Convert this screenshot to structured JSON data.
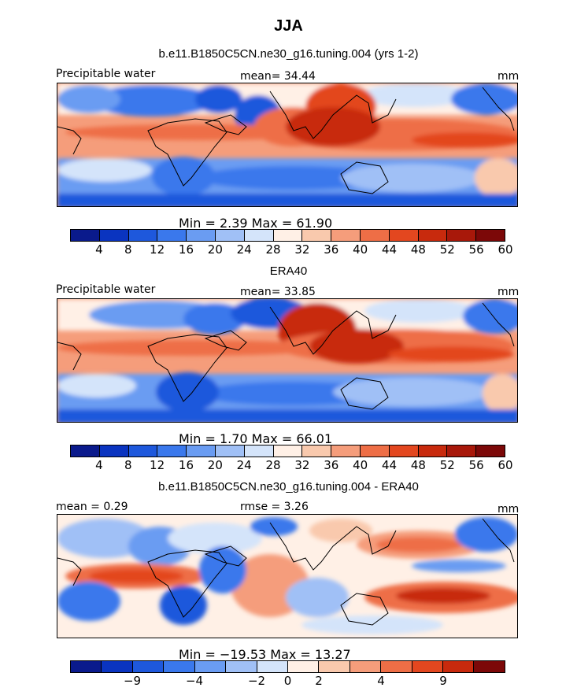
{
  "title": "JJA",
  "colors": {
    "abs_scale": [
      "#0a1a8c",
      "#0a34c0",
      "#1e58dc",
      "#3a78ec",
      "#6a9cf2",
      "#a0c0f6",
      "#d4e4fa",
      "#fff0e6",
      "#f9c9ad",
      "#f59d7b",
      "#ee6e46",
      "#e3471f",
      "#c82a0d",
      "#a8180a",
      "#7c0808"
    ],
    "diff_scale": [
      "#0a1a8c",
      "#0a34c0",
      "#1e58dc",
      "#3a78ec",
      "#6a9cf2",
      "#a0c0f6",
      "#d4e4fa",
      "#fff0e6",
      "#f9c9ad",
      "#f59d7b",
      "#ee6e46",
      "#e3471f",
      "#c82a0d",
      "#7c0808"
    ]
  },
  "panels": [
    {
      "title": "b.e11.B1850C5CN.ne30_g16.tuning.004 (yrs 1-2)",
      "left_label": "Precipitable water",
      "center_label": "mean=  34.44",
      "right_label": "mm",
      "stats": "Min =     2.39  Max =   61.90",
      "ticks": [
        "4",
        "8",
        "12",
        "16",
        "20",
        "24",
        "28",
        "32",
        "36",
        "40",
        "44",
        "48",
        "52",
        "56",
        "60"
      ]
    },
    {
      "title": "ERA40",
      "left_label": "Precipitable water",
      "center_label": "mean=  33.85",
      "right_label": "mm",
      "stats": "Min =     1.70  Max =   66.01",
      "ticks": [
        "4",
        "8",
        "12",
        "16",
        "20",
        "24",
        "28",
        "32",
        "36",
        "40",
        "44",
        "48",
        "52",
        "56",
        "60"
      ]
    },
    {
      "title": "b.e11.B1850C5CN.ne30_g16.tuning.004 - ERA40",
      "left_label": "mean =     0.29",
      "center_label": "rmse =     3.26",
      "right_label": "mm",
      "stats": "Min =  −19.53  Max =   13.27",
      "ticks": [
        "−9",
        "−4",
        "−2",
        "0",
        "2",
        "4",
        "9"
      ]
    }
  ]
}
